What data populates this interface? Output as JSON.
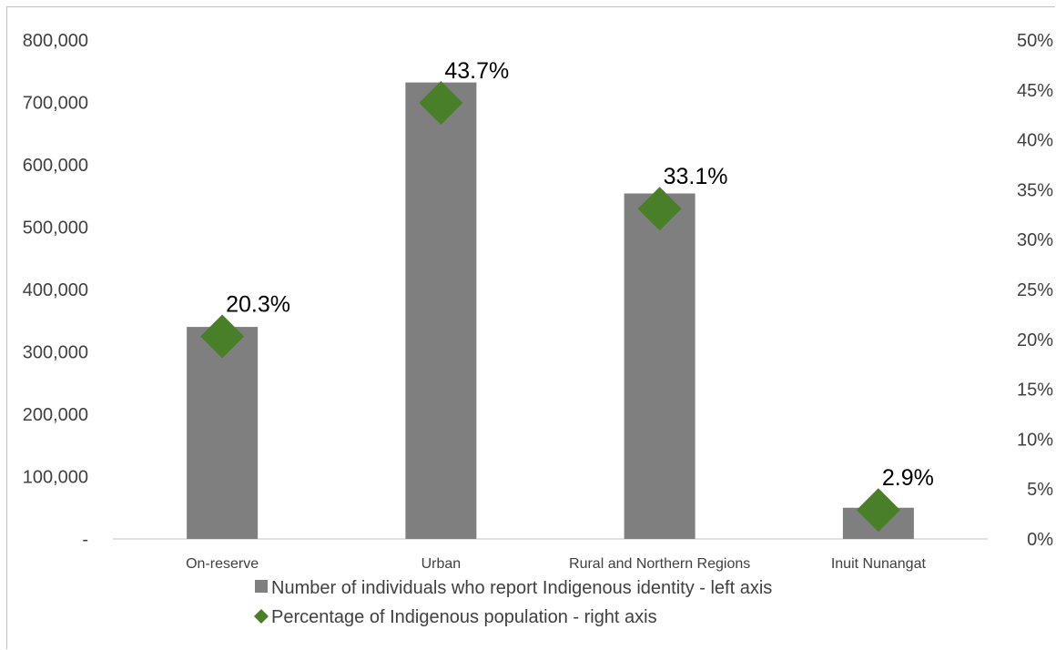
{
  "chart_data": {
    "type": "bar",
    "categories": [
      "On-reserve",
      "Urban",
      "Rural and Northern Regions",
      "Inuit Nunangat"
    ],
    "series": [
      {
        "name": "Number of individuals who report Indigenous identity - left axis",
        "type": "bar",
        "axis": "left",
        "color": "#7f7f7f",
        "values": [
          340000,
          732000,
          554000,
          50000
        ]
      },
      {
        "name": "Percentage of Indigenous population - right axis",
        "type": "scatter",
        "marker": "diamond",
        "axis": "right",
        "color": "#4a7f2a",
        "values": [
          20.3,
          43.7,
          33.1,
          2.9
        ],
        "labels": [
          "20.3%",
          "43.7%",
          "33.1%",
          "2.9%"
        ]
      }
    ],
    "left_axis": {
      "ylim": [
        0,
        800000
      ],
      "ticks": [
        0,
        100000,
        200000,
        300000,
        400000,
        500000,
        600000,
        700000,
        800000
      ],
      "tick_labels": [
        "-",
        "100,000",
        "200,000",
        "300,000",
        "400,000",
        "500,000",
        "600,000",
        "700,000",
        "800,000"
      ]
    },
    "right_axis": {
      "ylim": [
        0,
        50
      ],
      "ticks": [
        0,
        5,
        10,
        15,
        20,
        25,
        30,
        35,
        40,
        45,
        50
      ],
      "tick_labels": [
        "0%",
        "5%",
        "10%",
        "15%",
        "20%",
        "25%",
        "30%",
        "35%",
        "40%",
        "45%",
        "50%"
      ]
    },
    "title": "",
    "xlabel": "",
    "grid": false,
    "legend_position": "bottom"
  }
}
